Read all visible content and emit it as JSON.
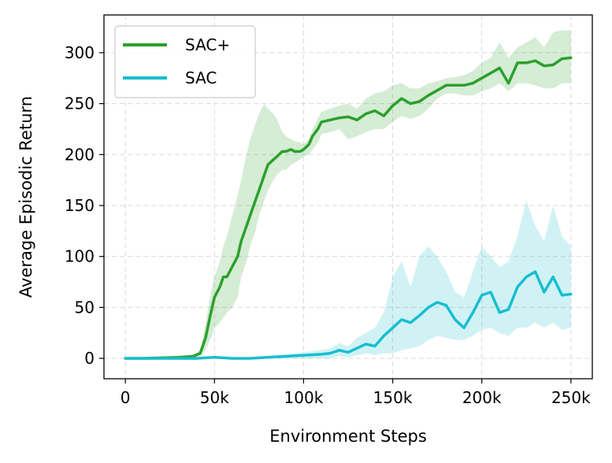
{
  "chart_data": {
    "type": "line",
    "xlabel": "Environment Steps",
    "ylabel": "Average Episodic Return",
    "xlim": [
      -12000,
      262000
    ],
    "ylim": [
      -20,
      337
    ],
    "grid": true,
    "legend_position": "top-left",
    "x_ticks": [
      0,
      50000,
      100000,
      150000,
      200000,
      250000
    ],
    "x_tick_labels": [
      "0",
      "50k",
      "100k",
      "150k",
      "200k",
      "250k"
    ],
    "y_ticks": [
      0,
      50,
      100,
      150,
      200,
      250,
      300
    ],
    "y_tick_labels": [
      "0",
      "50",
      "100",
      "150",
      "200",
      "250",
      "300"
    ],
    "series": [
      {
        "name": "SAC+",
        "color": "#2ca02c",
        "band_color": "#2ca02c",
        "x": [
          0,
          10000,
          20000,
          30000,
          38000,
          42000,
          45000,
          48000,
          50000,
          53000,
          55000,
          57000,
          60000,
          63000,
          65000,
          68000,
          70000,
          73000,
          75000,
          78000,
          80000,
          83000,
          85000,
          88000,
          90000,
          93000,
          95000,
          98000,
          100000,
          103000,
          105000,
          108000,
          110000,
          115000,
          120000,
          125000,
          130000,
          135000,
          140000,
          145000,
          150000,
          155000,
          160000,
          165000,
          170000,
          175000,
          180000,
          185000,
          190000,
          195000,
          200000,
          205000,
          210000,
          215000,
          220000,
          225000,
          230000,
          235000,
          240000,
          245000,
          250000
        ],
        "values": [
          0,
          0,
          0.5,
          1,
          2,
          5,
          20,
          45,
          60,
          70,
          80,
          80,
          90,
          100,
          115,
          130,
          140,
          155,
          165,
          180,
          190,
          195,
          198,
          203,
          203,
          205,
          203,
          203,
          205,
          210,
          218,
          225,
          232,
          234,
          236,
          237,
          234,
          240,
          243,
          238,
          248,
          255,
          250,
          252,
          258,
          263,
          268,
          268,
          268,
          270,
          275,
          280,
          285,
          270,
          290,
          290,
          292,
          287,
          288,
          294,
          295
        ],
        "lower": [
          0,
          0,
          0,
          0.5,
          1,
          2,
          8,
          20,
          30,
          35,
          40,
          45,
          50,
          60,
          80,
          95,
          110,
          125,
          140,
          155,
          165,
          175,
          180,
          185,
          185,
          190,
          192,
          195,
          198,
          200,
          205,
          212,
          220,
          222,
          225,
          215,
          218,
          222,
          225,
          225,
          232,
          238,
          235,
          238,
          245,
          255,
          260,
          260,
          258,
          258,
          262,
          265,
          270,
          262,
          270,
          270,
          268,
          265,
          265,
          270,
          270
        ],
        "upper": [
          0,
          0.5,
          1,
          2,
          3,
          8,
          35,
          65,
          80,
          95,
          110,
          120,
          140,
          160,
          175,
          200,
          215,
          230,
          240,
          250,
          245,
          240,
          235,
          222,
          218,
          215,
          213,
          212,
          210,
          215,
          225,
          235,
          242,
          245,
          248,
          250,
          245,
          255,
          260,
          262,
          268,
          270,
          265,
          265,
          270,
          272,
          275,
          276,
          278,
          282,
          290,
          295,
          310,
          295,
          305,
          310,
          315,
          305,
          320,
          322,
          322
        ]
      },
      {
        "name": "SAC",
        "color": "#17becf",
        "band_color": "#17becf",
        "x": [
          0,
          20000,
          40000,
          50000,
          60000,
          70000,
          80000,
          90000,
          100000,
          110000,
          115000,
          120000,
          125000,
          130000,
          135000,
          140000,
          145000,
          150000,
          155000,
          160000,
          165000,
          170000,
          175000,
          180000,
          185000,
          190000,
          195000,
          200000,
          205000,
          210000,
          215000,
          220000,
          225000,
          230000,
          235000,
          240000,
          245000,
          250000
        ],
        "values": [
          0,
          0,
          0,
          1,
          0,
          0,
          1,
          2,
          3,
          4,
          5,
          8,
          6,
          10,
          14,
          12,
          22,
          30,
          38,
          35,
          42,
          50,
          55,
          52,
          38,
          30,
          45,
          62,
          65,
          45,
          48,
          70,
          80,
          85,
          65,
          80,
          62,
          63
        ],
        "lower": [
          0,
          0,
          0,
          0,
          0,
          0,
          0,
          0,
          0,
          0,
          0,
          2,
          1,
          3,
          5,
          3,
          5,
          5,
          8,
          10,
          12,
          18,
          22,
          20,
          18,
          18,
          22,
          28,
          30,
          25,
          22,
          30,
          30,
          35,
          30,
          35,
          28,
          30
        ],
        "upper": [
          0,
          0.5,
          1,
          1.5,
          1,
          1,
          2,
          4,
          6,
          8,
          10,
          15,
          12,
          20,
          25,
          30,
          45,
          80,
          95,
          70,
          100,
          110,
          100,
          85,
          65,
          60,
          85,
          110,
          100,
          90,
          95,
          120,
          155,
          130,
          115,
          150,
          120,
          110
        ]
      }
    ]
  }
}
